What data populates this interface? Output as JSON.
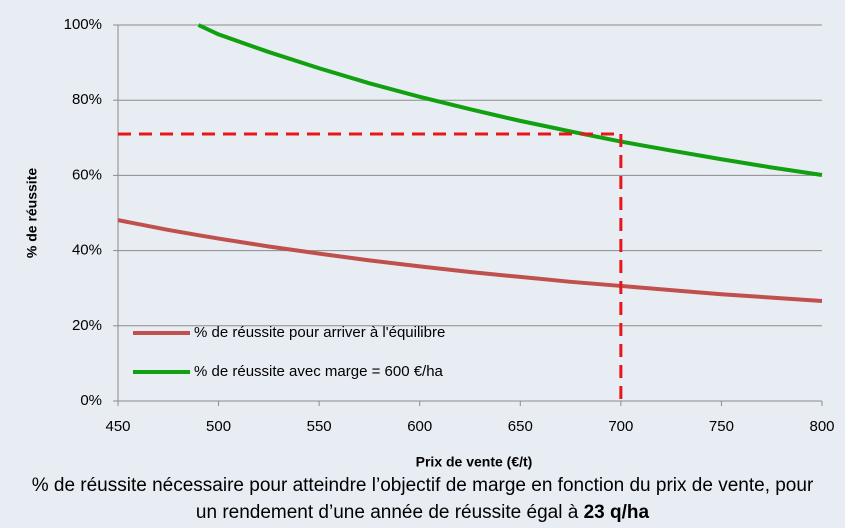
{
  "chart_data": {
    "type": "line",
    "x_label": "Prix de vente (€/t)",
    "y_label": "% de réussite",
    "x": [
      450,
      475,
      490,
      500,
      525,
      550,
      575,
      600,
      625,
      650,
      675,
      700,
      725,
      750,
      775,
      800
    ],
    "series": [
      {
        "name": "% de réussite pour arriver à l'équilibre",
        "color": "#c0504d",
        "values": [
          48.1,
          45.5,
          44.1,
          43.2,
          41.1,
          39.2,
          37.4,
          35.8,
          34.3,
          33.0,
          31.7,
          30.6,
          29.5,
          28.4,
          27.5,
          26.6
        ]
      },
      {
        "name": "% de réussite avec marge = 600 €/ha",
        "color": "#10a010",
        "values": [
          null,
          null,
          100,
          97.5,
          92.8,
          88.5,
          84.5,
          80.9,
          77.6,
          74.5,
          71.7,
          69.0,
          66.6,
          64.3,
          62.1,
          60.1
        ]
      }
    ],
    "reference": {
      "x": 700,
      "y": 71,
      "color": "#e8161b"
    },
    "xlim": [
      450,
      800
    ],
    "ylim": [
      0,
      100
    ],
    "xticks": [
      450,
      500,
      550,
      600,
      650,
      700,
      750,
      800
    ],
    "yticks": [
      {
        "value": 0,
        "label": "0%"
      },
      {
        "value": 20,
        "label": "20%"
      },
      {
        "value": 40,
        "label": "40%"
      },
      {
        "value": 60,
        "label": "60%"
      },
      {
        "value": 80,
        "label": "80%"
      },
      {
        "value": 100,
        "label": "100%"
      }
    ],
    "grid": true,
    "legend": "lower left",
    "caption": {
      "text": "% de réussite nécessaire pour atteindre l’objectif de marge en fonction du prix de vente, pour un rendement d’une année de réussite égal à ",
      "bold": "23 q/ha"
    }
  }
}
